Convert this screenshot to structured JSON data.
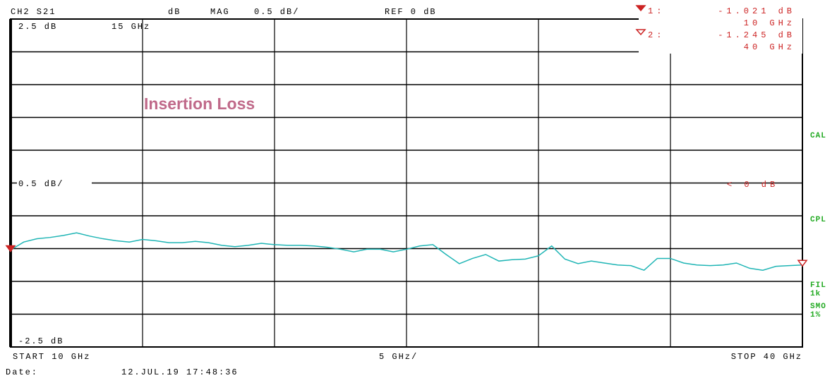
{
  "chart_data": {
    "type": "line",
    "color": "#1fb5b5",
    "header": {
      "channel": "CH2 S21",
      "format_unit": "dB",
      "format": "MAG",
      "scale": "0.5 dB/",
      "reference": "REF 0 dB"
    },
    "top_label": "2.5 dB",
    "top_freq_label": "15 GHz",
    "bottom_label": "-2.5 dB",
    "scale_label": "0.5 dB/",
    "ref_label": "< 0 dB",
    "annotation": "Insertion Loss",
    "start_label": "START 10 GHz",
    "step_label": "5 GHz/",
    "stop_label": "STOP 40 GHz",
    "date_label": "Date:",
    "date": "12.JUL.19 17:48:36",
    "status": [
      "CAL",
      "CPL",
      "FIL",
      "1k",
      "SMO",
      "1%"
    ],
    "markers": [
      {
        "label": "1:",
        "value": -1.021,
        "value_label": "-1.021 dB",
        "x": 10,
        "x_label": "10 GHz"
      },
      {
        "label": "2:",
        "value": -1.245,
        "value_label": "-1.245 dB",
        "x": 40,
        "x_label": "40 GHz"
      }
    ],
    "xlim": [
      10,
      40
    ],
    "xticks": [
      10,
      15,
      20,
      25,
      30,
      35,
      40
    ],
    "ylim": [
      -2.5,
      2.5
    ],
    "yticks": [
      -2.5,
      -2,
      -1.5,
      -1,
      -0.5,
      0,
      0.5,
      1,
      1.5,
      2,
      2.5
    ],
    "grid": true,
    "x": [
      10,
      10.5,
      11,
      11.5,
      12,
      12.5,
      13,
      13.5,
      14,
      14.5,
      15,
      15.5,
      16,
      16.5,
      17,
      17.5,
      18,
      18.5,
      19,
      19.5,
      20,
      20.5,
      21,
      21.5,
      22,
      22.5,
      23,
      23.5,
      24,
      24.5,
      25,
      25.5,
      26,
      26.5,
      27,
      27.5,
      28,
      28.5,
      29,
      29.5,
      30,
      30.5,
      31,
      31.5,
      32,
      32.5,
      33,
      33.5,
      34,
      34.5,
      35,
      35.5,
      36,
      36.5,
      37,
      37.5,
      38,
      38.5,
      39,
      39.5,
      40
    ],
    "values": [
      -1.02,
      -0.9,
      -0.85,
      -0.83,
      -0.8,
      -0.76,
      -0.81,
      -0.85,
      -0.88,
      -0.9,
      -0.86,
      -0.88,
      -0.91,
      -0.91,
      -0.89,
      -0.91,
      -0.95,
      -0.97,
      -0.95,
      -0.92,
      -0.94,
      -0.95,
      -0.95,
      -0.96,
      -0.98,
      -1.01,
      -1.05,
      -1.01,
      -1.01,
      -1.05,
      -1.01,
      -0.96,
      -0.94,
      -1.09,
      -1.23,
      -1.15,
      -1.09,
      -1.19,
      -1.17,
      -1.16,
      -1.11,
      -0.96,
      -1.16,
      -1.23,
      -1.19,
      -1.22,
      -1.25,
      -1.26,
      -1.33,
      -1.15,
      -1.15,
      -1.22,
      -1.25,
      -1.26,
      -1.25,
      -1.22,
      -1.3,
      -1.33,
      -1.27,
      -1.26,
      -1.25
    ]
  }
}
